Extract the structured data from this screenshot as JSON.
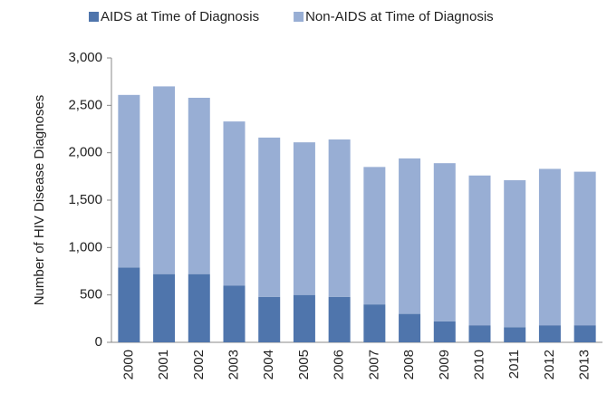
{
  "chart_data": {
    "type": "stacked_bar",
    "y_label": "Number of HIV Disease Diagnoses",
    "categories": [
      "2000",
      "2001",
      "2002",
      "2003",
      "2004",
      "2005",
      "2006",
      "2007",
      "2008",
      "2009",
      "2010",
      "2011",
      "2012",
      "2013"
    ],
    "series": [
      {
        "name": "AIDS at Time of Diagnosis",
        "color": "#4f75ac",
        "values": [
          790,
          720,
          720,
          600,
          480,
          500,
          480,
          400,
          300,
          220,
          180,
          160,
          180,
          180
        ]
      },
      {
        "name": "Non-AIDS at Time of Diagnosis",
        "color": "#98aed4",
        "values": [
          1820,
          1980,
          1860,
          1730,
          1680,
          1610,
          1660,
          1450,
          1640,
          1670,
          1580,
          1550,
          1650,
          1620
        ]
      }
    ],
    "ylim": [
      0,
      3000
    ],
    "yticks": [
      0,
      500,
      {
        "value": 1000,
        "label": "1,000"
      },
      {
        "value": 1500,
        "label": "1,500"
      },
      {
        "value": 2000,
        "label": "2,000"
      },
      {
        "value": 2500,
        "label": "2,500"
      },
      {
        "value": 3000,
        "label": "3,000"
      }
    ],
    "grid": false
  }
}
